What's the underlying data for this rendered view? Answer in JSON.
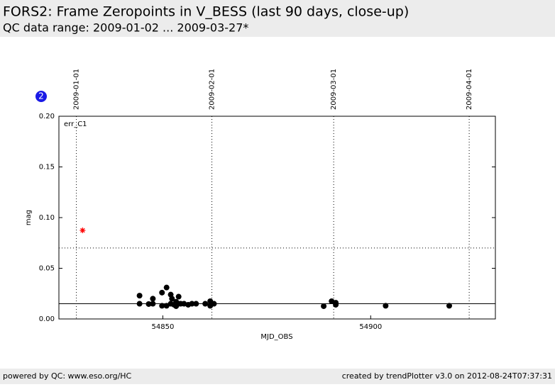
{
  "header": {
    "title": "FORS2: Frame Zeropoints in V_BESS (last 90 days, close-up)",
    "subtitle": "QC data range: 2009-01-02 ... 2009-03-27*"
  },
  "badge": "2",
  "footer": {
    "left": "powered by QC: www.eso.org/HC",
    "right": "created by trendPlotter v3.0 on 2012-08-24T07:37:31"
  },
  "chart_data": {
    "type": "scatter",
    "annotation": "err_C1",
    "x_label": "MJD_OBS",
    "y_label": "mag",
    "xlim": [
      54825,
      54930
    ],
    "ylim": [
      0,
      0.2
    ],
    "xticks": [
      54850,
      54900
    ],
    "yticks": [
      {
        "value": 0,
        "label": "0.00"
      },
      {
        "value": 0.05,
        "label": "0.05"
      },
      {
        "value": 0.1,
        "label": "0.10"
      },
      {
        "value": 0.15,
        "label": "0.15"
      },
      {
        "value": 0.2,
        "label": "0.20"
      }
    ],
    "top_ticks": [
      {
        "value": 54829.2,
        "label": "2009-01-01"
      },
      {
        "value": 54861.8,
        "label": "2009-02-01"
      },
      {
        "value": 54891.1,
        "label": "2009-03-01"
      },
      {
        "value": 54923.7,
        "label": "2009-04-01"
      }
    ],
    "hlines": [
      {
        "value": 0.07,
        "style": "dotted"
      },
      {
        "value": 0.015,
        "style": "solid"
      }
    ],
    "series": [
      {
        "color": "#000000",
        "marker": "circle",
        "x": [
          54844.4,
          54844.4,
          54846.6,
          54847.6,
          54847.6,
          54849.8,
          54849.8,
          54850.9,
          54850.9,
          54851.9,
          54851.9,
          54852.2,
          54852.7,
          54853.2,
          54853.2,
          54853.8,
          54853.8,
          54854.3,
          54855.1,
          54856.1,
          54857.0,
          54858.0,
          54860.2,
          54861.4,
          54861.4,
          54862.3,
          54888.7,
          54890.6,
          54891.6,
          54891.6,
          54903.6,
          54918.9
        ],
        "values": [
          0.023,
          0.015,
          0.0147,
          0.02,
          0.015,
          0.026,
          0.013,
          0.031,
          0.013,
          0.024,
          0.015,
          0.02,
          0.014,
          0.017,
          0.0126,
          0.022,
          0.015,
          0.015,
          0.015,
          0.014,
          0.015,
          0.015,
          0.015,
          0.0175,
          0.013,
          0.015,
          0.0126,
          0.0175,
          0.016,
          0.014,
          0.013,
          0.013
        ]
      },
      {
        "color": "#ff0000",
        "marker": "star",
        "x": [
          54830.7
        ],
        "values": [
          0.0874
        ]
      }
    ]
  }
}
